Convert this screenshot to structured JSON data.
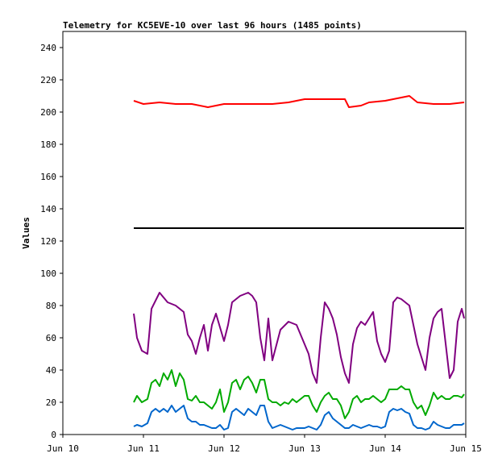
{
  "chart_data": {
    "type": "line",
    "title": "Telemetry for KC5EVE-10 over last 96 hours (1485 points)",
    "xlabel": "",
    "ylabel": "Values",
    "ylim": [
      0,
      250
    ],
    "xlim": [
      0,
      5
    ],
    "y_ticks": [
      0,
      20,
      40,
      60,
      80,
      100,
      120,
      140,
      160,
      180,
      200,
      220,
      240
    ],
    "x_ticks": [
      {
        "value": 0,
        "label": "Jun 10"
      },
      {
        "value": 1,
        "label": "Jun 11"
      },
      {
        "value": 2,
        "label": "Jun 12"
      },
      {
        "value": 3,
        "label": "Jun 13"
      },
      {
        "value": 4,
        "label": "Jun 14"
      },
      {
        "value": 5,
        "label": "Jun 15"
      }
    ],
    "grid": false,
    "legend": "none",
    "series": [
      {
        "color": "#ff0000",
        "x": [
          0.88,
          1.0,
          1.2,
          1.4,
          1.6,
          1.8,
          2.0,
          2.2,
          2.4,
          2.6,
          2.8,
          3.0,
          3.2,
          3.4,
          3.5,
          3.55,
          3.7,
          3.8,
          4.0,
          4.2,
          4.3,
          4.4,
          4.6,
          4.8,
          4.98
        ],
        "y": [
          207,
          205,
          206,
          205,
          205,
          203,
          205,
          205,
          205,
          205,
          206,
          208,
          208,
          208,
          208,
          203,
          204,
          206,
          207,
          209,
          210,
          206,
          205,
          205,
          206
        ]
      },
      {
        "color": "#000000",
        "x": [
          0.88,
          4.98
        ],
        "y": [
          128,
          128
        ]
      },
      {
        "color": "#800080",
        "x": [
          0.88,
          0.92,
          0.98,
          1.05,
          1.1,
          1.2,
          1.3,
          1.4,
          1.5,
          1.55,
          1.6,
          1.65,
          1.7,
          1.75,
          1.8,
          1.85,
          1.9,
          2.0,
          2.05,
          2.1,
          2.15,
          2.2,
          2.3,
          2.35,
          2.4,
          2.45,
          2.5,
          2.55,
          2.6,
          2.7,
          2.8,
          2.9,
          3.0,
          3.05,
          3.1,
          3.15,
          3.2,
          3.25,
          3.3,
          3.35,
          3.4,
          3.45,
          3.5,
          3.55,
          3.6,
          3.65,
          3.7,
          3.75,
          3.8,
          3.85,
          3.9,
          3.95,
          4.0,
          4.05,
          4.1,
          4.15,
          4.2,
          4.3,
          4.4,
          4.45,
          4.5,
          4.55,
          4.6,
          4.65,
          4.7,
          4.8,
          4.85,
          4.9,
          4.95,
          4.98
        ],
        "y": [
          75,
          60,
          52,
          50,
          78,
          88,
          82,
          80,
          76,
          62,
          58,
          50,
          60,
          68,
          52,
          68,
          75,
          58,
          68,
          82,
          84,
          86,
          88,
          86,
          82,
          60,
          46,
          72,
          46,
          65,
          70,
          68,
          56,
          50,
          38,
          32,
          60,
          82,
          78,
          72,
          62,
          48,
          38,
          32,
          56,
          66,
          70,
          68,
          72,
          76,
          58,
          50,
          45,
          52,
          82,
          85,
          84,
          80,
          56,
          48,
          40,
          60,
          72,
          76,
          78,
          35,
          40,
          70,
          78,
          72
        ]
      },
      {
        "color": "#00aa00",
        "x": [
          0.88,
          0.92,
          0.98,
          1.05,
          1.1,
          1.15,
          1.2,
          1.25,
          1.3,
          1.35,
          1.4,
          1.45,
          1.5,
          1.55,
          1.6,
          1.65,
          1.7,
          1.75,
          1.8,
          1.85,
          1.9,
          1.95,
          2.0,
          2.05,
          2.1,
          2.15,
          2.2,
          2.25,
          2.3,
          2.35,
          2.4,
          2.45,
          2.5,
          2.55,
          2.6,
          2.65,
          2.7,
          2.75,
          2.8,
          2.85,
          2.9,
          2.95,
          3.0,
          3.05,
          3.1,
          3.15,
          3.2,
          3.25,
          3.3,
          3.35,
          3.4,
          3.45,
          3.5,
          3.55,
          3.6,
          3.65,
          3.7,
          3.75,
          3.8,
          3.85,
          3.9,
          3.95,
          4.0,
          4.05,
          4.1,
          4.15,
          4.2,
          4.25,
          4.3,
          4.35,
          4.4,
          4.45,
          4.5,
          4.55,
          4.6,
          4.65,
          4.7,
          4.75,
          4.8,
          4.85,
          4.9,
          4.95,
          4.98
        ],
        "y": [
          20,
          24,
          20,
          22,
          32,
          34,
          30,
          38,
          34,
          40,
          30,
          38,
          34,
          22,
          21,
          24,
          20,
          20,
          18,
          16,
          20,
          28,
          14,
          20,
          32,
          34,
          28,
          34,
          36,
          32,
          26,
          34,
          34,
          22,
          20,
          20,
          18,
          20,
          19,
          22,
          20,
          22,
          24,
          24,
          18,
          14,
          20,
          24,
          26,
          22,
          22,
          18,
          10,
          14,
          22,
          24,
          20,
          22,
          22,
          24,
          22,
          20,
          22,
          28,
          28,
          28,
          30,
          28,
          28,
          20,
          16,
          18,
          12,
          18,
          26,
          22,
          24,
          22,
          22,
          24,
          24,
          23,
          25
        ]
      },
      {
        "color": "#0066cc",
        "x": [
          0.88,
          0.92,
          0.98,
          1.05,
          1.1,
          1.15,
          1.2,
          1.25,
          1.3,
          1.35,
          1.4,
          1.45,
          1.5,
          1.55,
          1.6,
          1.65,
          1.7,
          1.75,
          1.8,
          1.85,
          1.9,
          1.95,
          2.0,
          2.05,
          2.1,
          2.15,
          2.2,
          2.25,
          2.3,
          2.35,
          2.4,
          2.45,
          2.5,
          2.55,
          2.6,
          2.65,
          2.7,
          2.75,
          2.8,
          2.85,
          2.9,
          2.95,
          3.0,
          3.05,
          3.1,
          3.15,
          3.2,
          3.25,
          3.3,
          3.35,
          3.4,
          3.45,
          3.5,
          3.55,
          3.6,
          3.65,
          3.7,
          3.75,
          3.8,
          3.85,
          3.9,
          3.95,
          4.0,
          4.05,
          4.1,
          4.15,
          4.2,
          4.25,
          4.3,
          4.35,
          4.4,
          4.45,
          4.5,
          4.55,
          4.6,
          4.65,
          4.7,
          4.75,
          4.8,
          4.85,
          4.9,
          4.95,
          4.98
        ],
        "y": [
          5,
          6,
          5,
          7,
          14,
          16,
          14,
          16,
          14,
          18,
          14,
          16,
          18,
          10,
          8,
          8,
          6,
          6,
          5,
          4,
          4,
          6,
          3,
          4,
          14,
          16,
          14,
          12,
          16,
          14,
          12,
          18,
          18,
          8,
          4,
          5,
          6,
          5,
          4,
          3,
          4,
          4,
          4,
          5,
          4,
          3,
          6,
          12,
          14,
          10,
          8,
          6,
          4,
          4,
          6,
          5,
          4,
          5,
          6,
          5,
          5,
          4,
          5,
          14,
          16,
          15,
          16,
          14,
          13,
          6,
          4,
          4,
          3,
          4,
          8,
          6,
          5,
          4,
          4,
          6,
          6,
          6,
          7
        ]
      }
    ]
  }
}
